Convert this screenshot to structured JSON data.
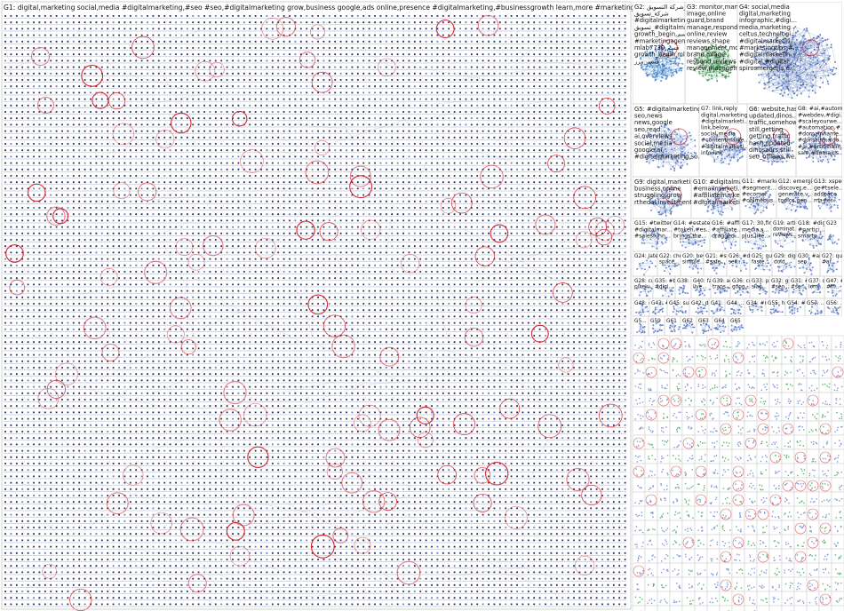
{
  "graph": {
    "groups": [
      {
        "id": "G1",
        "lines": [
          "G1: digital,marketing social,media #digitalmarketing,#seo #seo,#digitalmarketing grow,business google,ads online,presence #digitalmarketing,#businessgrowth learn,more #marketing,#digitalmarketing"
        ]
      },
      {
        "id": "G2",
        "lines": [
          "G2: مورشركة التسويق",
          "شركة_تسويق",
          "#digitalmarketing,#marketi...",
          "تسويق_#digitalmarketing",
          "growth_begin,قسم",
          "#marketingagency,مستشار",
          "mlab7730,قسم",
          "growth_begin,mlab7730",
          "قسم_مرر"
        ]
      },
      {
        "id": "G3",
        "lines": [
          "G3: monitor,manage",
          "image,online",
          "guard,brand",
          "manage,respond",
          "online,review",
          "reviews,shape",
          "management,monitor",
          "brand,image",
          "respond,reviews",
          "review,management"
        ]
      },
      {
        "id": "G4",
        "lines": [
          "G4: social,media",
          "digital,marketing",
          "infographic,#digi...",
          "media,marketing",
          "celtus,technologi...",
          "#digitalmarketin...",
          "#marketingtips,#...",
          "#digitalmarketin...",
          "#digital,#digital...",
          "spirosmergeris,e..."
        ]
      },
      {
        "id": "G5",
        "lines": [
          "G5: #digitalmarketing,seo",
          "seo,news",
          "news,google",
          "seo,read",
          "ai,overviews",
          "social,media",
          "google,ai",
          "#digitalmarketing,so..."
        ]
      },
      {
        "id": "G7",
        "lines": [
          "G7: link,reply",
          "digital,marketing",
          "#digitalmarketi...",
          "link,below",
          "social,media",
          "#contentmarke...",
          "#digitalmarketi...",
          "info,link"
        ]
      },
      {
        "id": "G6",
        "lines": [
          "G6: website,hash",
          "updated,dinos...",
          "traffic,somehow",
          "still,getting",
          "getting,traffic",
          "hash,updated",
          "dinosaurs,still",
          "seo_offlaws,we..."
        ]
      },
      {
        "id": "G8",
        "lines": [
          "G8: #ai,#automati...",
          "#webdev,#digi...",
          "#scaleyourwe...",
          "#automation,#...",
          "#domainname...",
          "#domains,#do...",
          "#ai,#artificialin...",
          "sale,#domains..."
        ]
      },
      {
        "id": "G9",
        "lines": [
          "G9: digital,marketing",
          "business,online",
          "struggling,grow",
          "rthedal,investment"
        ]
      },
      {
        "id": "G10",
        "lines": [
          "G10: #digitalmarketi...",
          "#emailmarketi...",
          "#affiliatemarke...",
          "#digitalmarketi..."
        ]
      },
      {
        "id": "G11",
        "lines": [
          "G11: #marketin...",
          "#segment...",
          "#ecomer...",
          "#onlinebus..."
        ]
      },
      {
        "id": "G12",
        "lines": [
          "G12: emerging t...",
          "discover,e...",
          "generate,v...",
          "topics,gen..."
        ]
      },
      {
        "id": "G13",
        "lines": [
          "G13: xspecia...",
          "ge#tsele...",
          "adspace",
          "ma#er..."
        ]
      },
      {
        "id": "G15",
        "lines": [
          "G15: #twitterwor...",
          "#digitalmar...",
          "#salesfunn..."
        ]
      },
      {
        "id": "G14",
        "lines": [
          "G14: #estate,#di...",
          "#token,#es...",
          "brings,the..."
        ]
      },
      {
        "id": "G16",
        "lines": [
          "G16: #affiliate...",
          "#affiliate...",
          "dragged..."
        ]
      },
      {
        "id": "G17",
        "lines": [
          "G17: 30,findi...",
          "media,s...",
          "plus,like..."
        ]
      },
      {
        "id": "G19",
        "lines": [
          "G19: article,r...",
          "dominat...",
          "reviews..."
        ]
      },
      {
        "id": "G18",
        "lines": [
          "G18: #digital...",
          "#partici...",
          "smartp..."
        ]
      },
      {
        "id": "G23",
        "lines": [
          "G23"
        ]
      },
      {
        "id": "G24",
        "lines": [
          "G24: latest..."
        ]
      },
      {
        "id": "G22",
        "lines": [
          "G22: check...",
          "space..."
        ]
      },
      {
        "id": "G20",
        "lines": [
          "G20: beyon...",
          "simple..."
        ]
      },
      {
        "id": "G21",
        "lines": [
          "G21: #seo...",
          "#safe..."
        ]
      },
      {
        "id": "G26",
        "lines": [
          "G26: #digi...",
          "sell..."
        ]
      },
      {
        "id": "G25",
        "lines": [
          "G25: gum...",
          "faste..."
        ]
      },
      {
        "id": "G29",
        "lines": [
          "G29: digit...",
          "dold..."
        ]
      },
      {
        "id": "G30",
        "lines": [
          "G30: #art...",
          "seo..."
        ]
      },
      {
        "id": "G27",
        "lines": [
          "G27: ques...",
          "#ai..."
        ]
      },
      {
        "id": "G28",
        "lines": [
          "G28: curve...",
          "pixelv..."
        ]
      },
      {
        "id": "G35",
        "lines": [
          "G35: #bog...",
          "#digi..."
        ]
      },
      {
        "id": "G38",
        "lines": [
          "G38: #s..."
        ]
      },
      {
        "id": "G40",
        "lines": [
          "G40: facul...",
          "live..."
        ]
      },
      {
        "id": "G39",
        "lines": [
          "G39: adve...",
          "trans..."
        ]
      },
      {
        "id": "G36",
        "lines": [
          "G36: cour...",
          "goog..."
        ]
      },
      {
        "id": "G33",
        "lines": [
          "G33: prof...",
          "slac..."
        ]
      },
      {
        "id": "G32",
        "lines": [
          "G32: grou...",
          "#seo..."
        ]
      },
      {
        "id": "G31",
        "lines": [
          "G31: #pr...",
          "#se..."
        ]
      },
      {
        "id": "G37",
        "lines": [
          "G37: qu...",
          "lom..."
        ]
      },
      {
        "id": "G47",
        "lines": [
          "G47: #ar...",
          "#ff..."
        ]
      },
      {
        "id": "G48",
        "lines": [
          "G48: #di..."
        ]
      },
      {
        "id": "G43",
        "lines": [
          "G43: #c..."
        ]
      },
      {
        "id": "G45",
        "lines": [
          "G45: subu..."
        ]
      },
      {
        "id": "G42",
        "lines": [
          "G42: digi..."
        ]
      },
      {
        "id": "G41",
        "lines": [
          "G41: #s..."
        ]
      },
      {
        "id": "G44",
        "lines": [
          "G44: ..."
        ]
      },
      {
        "id": "G34",
        "lines": [
          "G34: #ma..."
        ]
      },
      {
        "id": "G55",
        "lines": [
          "G55: hap..."
        ]
      },
      {
        "id": "G54",
        "lines": [
          "G54: #t..."
        ]
      },
      {
        "id": "G57",
        "lines": [
          "G57: ..."
        ]
      },
      {
        "id": "G56",
        "lines": [
          "G56: ..."
        ]
      },
      {
        "id": "G58",
        "lines": [
          "G5..."
        ]
      },
      {
        "id": "G59",
        "lines": [
          "G59"
        ]
      },
      {
        "id": "G61",
        "lines": [
          "G61"
        ]
      },
      {
        "id": "G62",
        "lines": [
          "G62"
        ]
      },
      {
        "id": "G63",
        "lines": [
          "G63"
        ]
      },
      {
        "id": "G64",
        "lines": [
          "G64"
        ]
      },
      {
        "id": "G65",
        "lines": [
          "G65"
        ]
      }
    ]
  },
  "colors": {
    "edge": "#9a9a9a",
    "node_dark": "#1c2a6b",
    "node_light": "#5e7ec9",
    "highlight": "#d21f2a",
    "g2_accent": "#2e77c8",
    "g3_accent": "#2f8a43",
    "divider": "#c7c7c7"
  }
}
